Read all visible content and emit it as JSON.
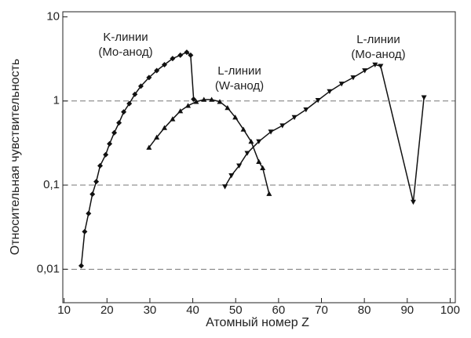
{
  "chart_data": {
    "type": "line",
    "xlabel": "Атомный номер Z",
    "ylabel": "Относительная чувствительность",
    "log_y": true,
    "grid": true,
    "xlim": [
      9.7,
      101.2
    ],
    "xticks": [
      10,
      20,
      30,
      40,
      50,
      60,
      70,
      80,
      90,
      100
    ],
    "ylim": [
      0.004,
      11.5
    ],
    "yticks": [
      {
        "value": 0.01,
        "label": "0,01"
      },
      {
        "value": 0.1,
        "label": "0,1"
      },
      1,
      10
    ],
    "annotations": [
      {
        "text": [
          "K-линии",
          "(Mo-анод)"
        ]
      },
      {
        "text": [
          "L-линии",
          "(W-анод)"
        ]
      },
      {
        "text": [
          "L-линии",
          "(Mo-анод)"
        ]
      }
    ],
    "series": [
      {
        "marker": "diamond",
        "color": "#111111",
        "x": [
          14,
          14.8,
          15.7,
          16.6,
          17.5,
          18.4,
          19.7,
          20.6,
          21.7,
          22.8,
          23.9,
          25.2,
          26.5,
          27.9,
          29.8,
          31.6,
          33.4,
          35.3,
          37.1,
          38.6,
          39.5,
          40.2
        ],
        "values": [
          0.011,
          0.028,
          0.046,
          0.078,
          0.11,
          0.17,
          0.23,
          0.31,
          0.42,
          0.55,
          0.74,
          0.93,
          1.2,
          1.5,
          1.9,
          2.3,
          2.7,
          3.2,
          3.5,
          3.8,
          3.5,
          1.05
        ]
      },
      {
        "marker": "triangle-up",
        "color": "#111111",
        "x": [
          29.8,
          31.6,
          33.4,
          35.3,
          37.1,
          38.9,
          40.8,
          42.6,
          44.4,
          46.3,
          48.1,
          49.9,
          51.8,
          53.6,
          55.4,
          56.3,
          57.8
        ],
        "values": [
          0.28,
          0.37,
          0.48,
          0.61,
          0.76,
          0.88,
          0.98,
          1.04,
          1.04,
          0.98,
          0.83,
          0.64,
          0.46,
          0.33,
          0.19,
          0.16,
          0.079
        ]
      },
      {
        "marker": "triangle-down",
        "color": "#111111",
        "x": [
          47.5,
          49,
          50.8,
          52.7,
          55.4,
          58.2,
          60.9,
          63.7,
          66.4,
          69.2,
          71.9,
          74.7,
          77.4,
          80.1,
          82.5,
          83.8,
          91.4,
          93.9
        ],
        "values": [
          0.096,
          0.13,
          0.17,
          0.24,
          0.33,
          0.43,
          0.51,
          0.64,
          0.79,
          1.02,
          1.3,
          1.6,
          1.9,
          2.3,
          2.7,
          2.6,
          0.063,
          1.1
        ]
      }
    ]
  }
}
